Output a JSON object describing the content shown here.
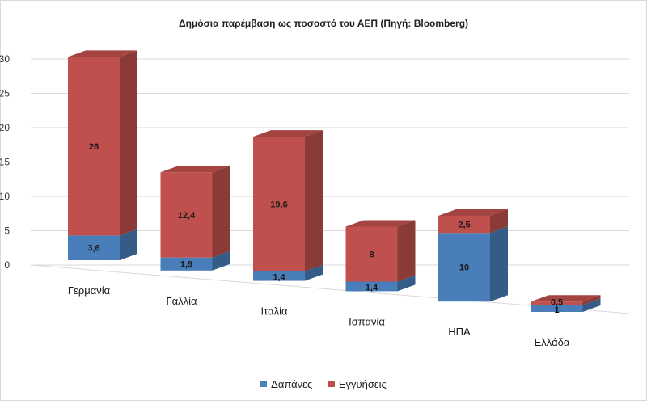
{
  "chart_data": {
    "type": "bar",
    "stacked": true,
    "style": "3d",
    "title": "Δημόσια παρέμβαση ως ποσοστό του ΑΕΠ (Πηγή: Bloomberg)",
    "categories": [
      "Γερμανία",
      "Γαλλία",
      "Ιταλία",
      "Ισπανία",
      "ΗΠΑ",
      "Ελλάδα"
    ],
    "series": [
      {
        "name": "Δαπάνες",
        "values": [
          3.6,
          1.9,
          1.4,
          1.4,
          10,
          1
        ],
        "labels": [
          "3,6",
          "1,9",
          "1,4",
          "1,4",
          "10",
          "1"
        ]
      },
      {
        "name": "Εγγυήσεις",
        "values": [
          26,
          12.4,
          19.6,
          8,
          2.5,
          0.5
        ],
        "labels": [
          "26",
          "12,4",
          "19,6",
          "8",
          "2,5",
          "0,5"
        ]
      }
    ],
    "y_ticks": [
      "0",
      "5",
      "10",
      "15",
      "20",
      "25",
      "30"
    ],
    "ylim": [
      0,
      30
    ],
    "grid": true,
    "legend_position": "bottom",
    "colors": {
      "Δαπάνες": "#4a7ebb",
      "Εγγυήσεις": "#c0504d"
    }
  }
}
